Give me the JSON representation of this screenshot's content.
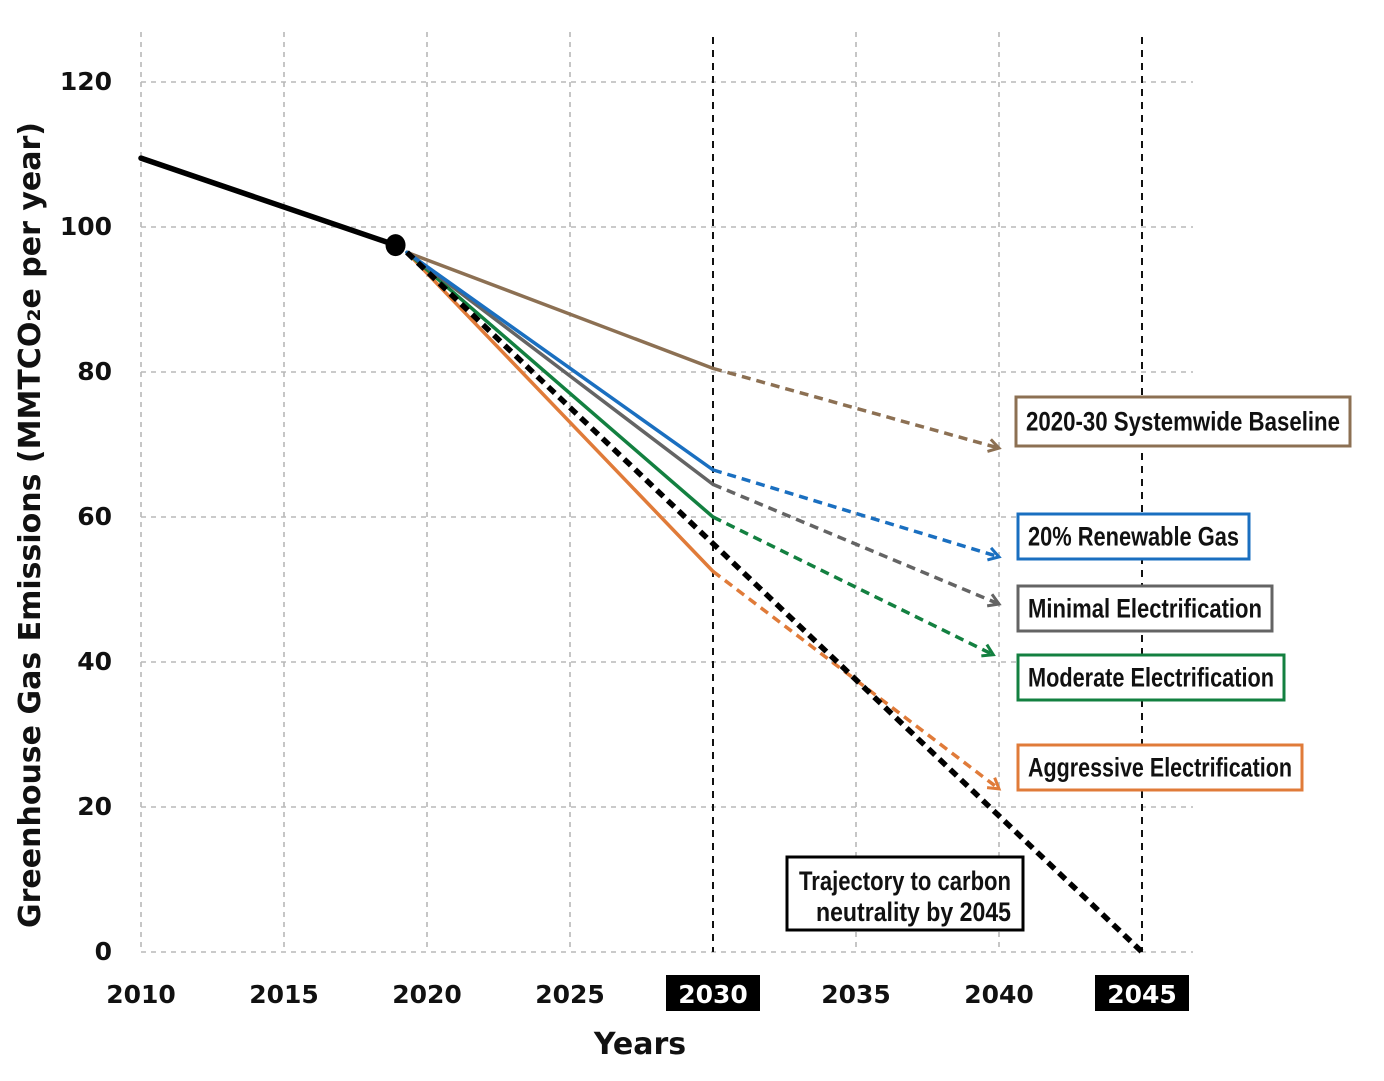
{
  "chart_data": {
    "type": "line",
    "title": "",
    "xlabel": "Years",
    "ylabel": "Greenhouse Gas Emissions  (MMTCO₂e per year)",
    "xlim": [
      2010,
      2046.5
    ],
    "ylim": [
      0,
      125
    ],
    "x_ticks": [
      "2010",
      "2015",
      "2020",
      "2025",
      "2030",
      "2035",
      "2040",
      "2045"
    ],
    "x_tick_values": [
      2010,
      2015,
      2020,
      2025,
      2030,
      2035,
      2040,
      2045
    ],
    "highlighted_years": [
      "2030",
      "2045"
    ],
    "y_ticks": [
      "0",
      "20",
      "40",
      "60",
      "80",
      "100",
      "120"
    ],
    "y_tick_values": [
      0,
      20,
      40,
      60,
      80,
      100,
      120
    ],
    "grid": true,
    "historical": {
      "color": "#000000",
      "points": [
        [
          2010,
          109.5
        ],
        [
          2018.9,
          97.5
        ]
      ]
    },
    "series": [
      {
        "name": "2020-30 Systemwide Baseline",
        "color": "#8c7053",
        "solid": [
          [
            2019.3,
            96.5
          ],
          [
            2030,
            80.5
          ]
        ],
        "projected": [
          [
            2030,
            80.5
          ],
          [
            2040,
            69.5
          ]
        ]
      },
      {
        "name": "20% Renewable Gas",
        "color": "#1a6fc0",
        "solid": [
          [
            2019.3,
            96.5
          ],
          [
            2030,
            66.5
          ]
        ],
        "projected": [
          [
            2030,
            66.5
          ],
          [
            2040,
            54.5
          ]
        ]
      },
      {
        "name": "Minimal Electrification",
        "color": "#646464",
        "solid": [
          [
            2019.3,
            96.5
          ],
          [
            2030,
            64.5
          ]
        ],
        "projected": [
          [
            2030,
            64.5
          ],
          [
            2040,
            48.0
          ]
        ]
      },
      {
        "name": "Moderate Electrification",
        "color": "#138040",
        "solid": [
          [
            2019.3,
            96.5
          ],
          [
            2030,
            60.0
          ]
        ],
        "projected": [
          [
            2030,
            60.0
          ],
          [
            2039.8,
            41.0
          ]
        ]
      },
      {
        "name": "Aggressive Electrification",
        "color": "#e07b39",
        "solid": [
          [
            2019.3,
            96.5
          ],
          [
            2030,
            52.5
          ]
        ],
        "projected": [
          [
            2030,
            52.5
          ],
          [
            2040,
            22.5
          ]
        ]
      }
    ],
    "trajectory": {
      "label_line1": "Trajectory to carbon",
      "label_line2": "neutrality by 2045",
      "color": "#000000",
      "points": [
        [
          2019.3,
          96.5
        ],
        [
          2045,
          0
        ]
      ]
    }
  }
}
